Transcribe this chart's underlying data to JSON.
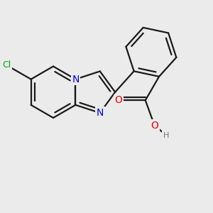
{
  "bg_color": "#ebebeb",
  "bond_color": "#1a1a1a",
  "bond_width": 1.6,
  "atom_colors": {
    "N": "#0000ee",
    "O": "#ee0000",
    "Cl": "#00aa00",
    "H": "#777777",
    "C": "#1a1a1a"
  },
  "font_size_N": 10,
  "font_size_O": 10,
  "font_size_Cl": 9,
  "font_size_H": 8,
  "fig_size": [
    3.0,
    3.0
  ],
  "dpi": 100
}
